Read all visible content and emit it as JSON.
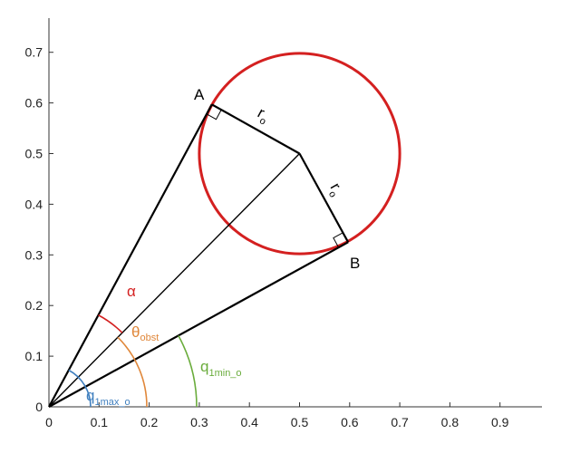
{
  "chart_data": {
    "type": "diagram",
    "xlim": [
      0,
      0.97
    ],
    "ylim": [
      0,
      0.77
    ],
    "x_ticks": [
      "0",
      "0.1",
      "0.2",
      "0.3",
      "0.4",
      "0.5",
      "0.6",
      "0.7",
      "0.8",
      "0.9"
    ],
    "y_ticks": [
      "0",
      "0.1",
      "0.2",
      "0.3",
      "0.4",
      "0.5",
      "0.6",
      "0.7"
    ],
    "grid": false,
    "circle": {
      "center": [
        0.5,
        0.5
      ],
      "radius": 0.2,
      "color": "#d42020"
    },
    "origin": [
      0,
      0
    ],
    "point_A": [
      0.325,
      0.597
    ],
    "point_B": [
      0.597,
      0.325
    ],
    "labels": {
      "A": "A",
      "B": "B",
      "r1": "r",
      "r1_sub": "o",
      "r2": "r",
      "r2_sub": "o",
      "alpha": "α",
      "theta": "θ",
      "theta_sub": "obst",
      "q1min": "q",
      "q1min_sub": "1min_o",
      "q1max": "q",
      "q1max_sub": "1max_o"
    },
    "colors": {
      "alpha": "#d42020",
      "theta": "#e0873a",
      "q1min": "#6aac3c",
      "q1max": "#3f7fbf"
    }
  }
}
